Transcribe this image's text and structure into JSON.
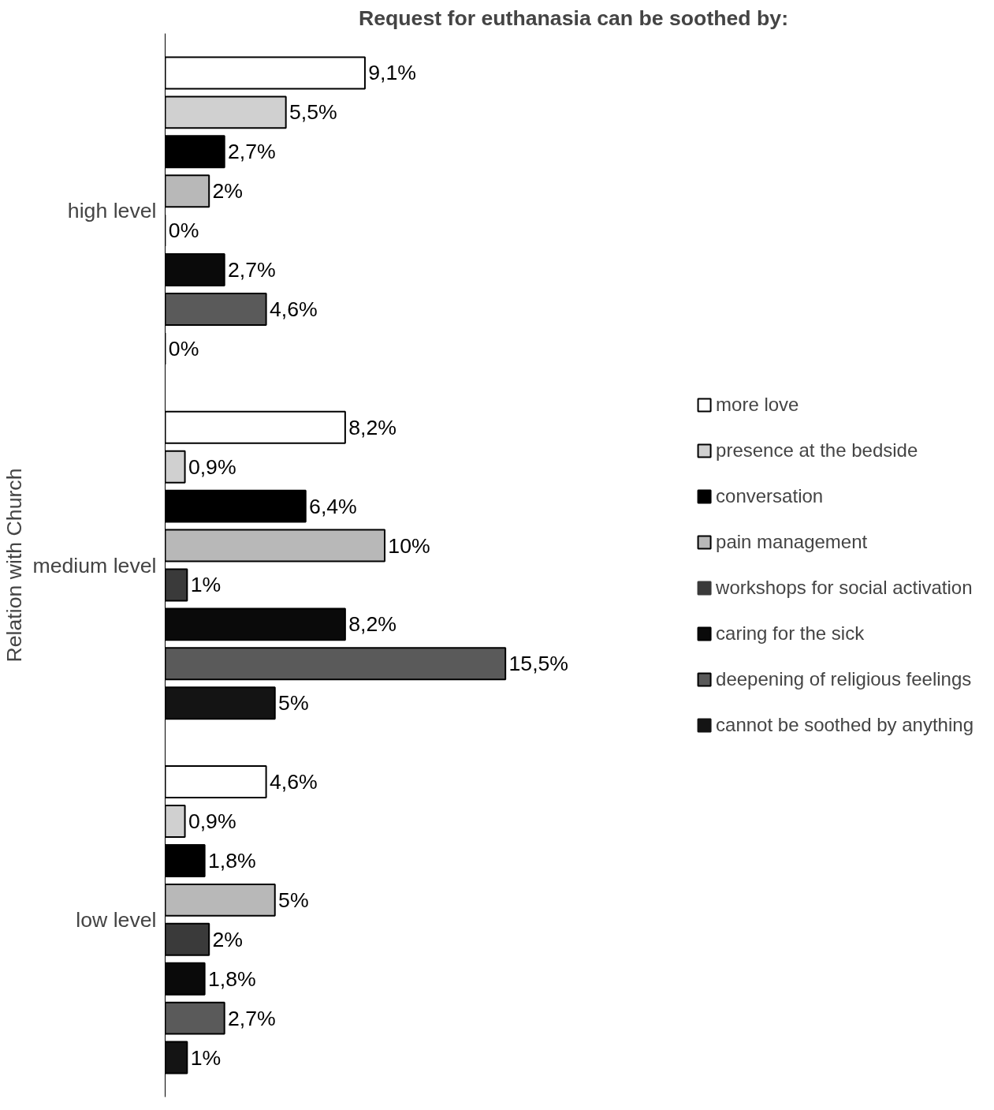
{
  "chart_data": {
    "type": "bar",
    "orientation": "horizontal",
    "title": "Request for euthanasia can be soothed by:",
    "ylabel": "Relation with Church",
    "categories": [
      "high level",
      "medium level",
      "low level"
    ],
    "series": [
      {
        "name": "more love",
        "color": "#ffffff",
        "values": [
          9.1,
          8.2,
          4.6
        ],
        "value_labels": [
          "9,1%",
          "8,2%",
          "4,6%"
        ]
      },
      {
        "name": "presence at the bedside",
        "color": "#d0d0d0",
        "values": [
          5.5,
          0.9,
          0.9
        ],
        "value_labels": [
          "5,5%",
          "0,9%",
          "0,9%"
        ]
      },
      {
        "name": "conversation",
        "color": "#000000",
        "values": [
          2.7,
          6.4,
          1.8
        ],
        "value_labels": [
          "2,7%",
          "6,4%",
          "1,8%"
        ]
      },
      {
        "name": "pain management",
        "color": "#b8b8b8",
        "values": [
          2,
          10,
          5
        ],
        "value_labels": [
          "2%",
          "10%",
          "5%"
        ]
      },
      {
        "name": "workshops for social activation",
        "color": "#3a3a3a",
        "values": [
          0,
          1,
          2
        ],
        "value_labels": [
          "0%",
          "1%",
          "2%"
        ]
      },
      {
        "name": "caring for the sick",
        "color": "#0a0a0a",
        "values": [
          2.7,
          8.2,
          1.8
        ],
        "value_labels": [
          "2,7%",
          "8,2%",
          "1,8%"
        ]
      },
      {
        "name": "deepening of religious feelings",
        "color": "#5a5a5a",
        "values": [
          4.6,
          15.5,
          2.7
        ],
        "value_labels": [
          "4,6%",
          "15,5%",
          "2,7%"
        ]
      },
      {
        "name": "cannot be soothed by anything",
        "color": "#141414",
        "values": [
          0,
          5,
          1
        ],
        "value_labels": [
          "0%",
          "5%",
          "1%"
        ]
      }
    ],
    "legend": "right",
    "grid": false
  }
}
